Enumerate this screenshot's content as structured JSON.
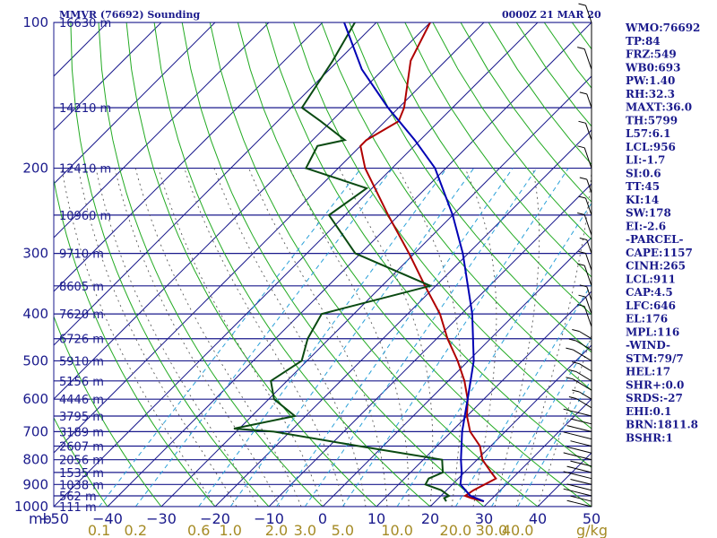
{
  "header": {
    "station": "MMVR (76692) Sounding",
    "time": "0000Z 21 MAR 20"
  },
  "chart_data": {
    "type": "skew-t",
    "xlim": [
      -50,
      50
    ],
    "p_range": [
      1000,
      100
    ],
    "pressure_ticks": [
      100,
      200,
      300,
      400,
      500,
      600,
      700,
      800,
      900,
      1000
    ],
    "temperature_ticks": [
      "−50",
      "−40",
      "−30",
      "−20",
      "−10",
      "0",
      "10",
      "20",
      "30",
      "40",
      "50"
    ],
    "pressure_unit": "mb",
    "mixing_ratio_unit": "g/kg",
    "mixing_ratio_ticks": [
      {
        "w": 0.1,
        "label": "0.1"
      },
      {
        "w": 0.2,
        "label": "0.2"
      },
      {
        "w": 0.6,
        "label": "0.6"
      },
      {
        "w": 1.0,
        "label": "1.0"
      },
      {
        "w": 2.0,
        "label": "2.0"
      },
      {
        "w": 3.0,
        "label": "3.0"
      },
      {
        "w": 5.0,
        "label": "5.0"
      },
      {
        "w": 10.0,
        "label": "10.0"
      },
      {
        "w": 20.0,
        "label": "20.0"
      },
      {
        "w": 30.0,
        "label": "30.0"
      },
      {
        "w": 40.0,
        "label": "40.0"
      }
    ],
    "height_labels": [
      {
        "p": 100,
        "h": "16630 m"
      },
      {
        "p": 150,
        "h": "14210 m"
      },
      {
        "p": 200,
        "h": "12410 m"
      },
      {
        "p": 250,
        "h": "10960 m"
      },
      {
        "p": 300,
        "h": "9710 m"
      },
      {
        "p": 350,
        "h": "8605 m"
      },
      {
        "p": 400,
        "h": "7620 m"
      },
      {
        "p": 450,
        "h": "6726 m"
      },
      {
        "p": 500,
        "h": "5910 m"
      },
      {
        "p": 550,
        "h": "5156 m"
      },
      {
        "p": 600,
        "h": "4446 m"
      },
      {
        "p": 650,
        "h": "3795 m"
      },
      {
        "p": 700,
        "h": "3189 m"
      },
      {
        "p": 750,
        "h": "2607 m"
      },
      {
        "p": 800,
        "h": "2056 m"
      },
      {
        "p": 850,
        "h": "1535 m"
      },
      {
        "p": 900,
        "h": "1038 m"
      },
      {
        "p": 950,
        "h": "562 m"
      },
      {
        "p": 1000,
        "h": "111 m"
      }
    ],
    "series": [
      {
        "name": "",
        "color": "#b00000",
        "points": [
          [
            975,
            29
          ],
          [
            960,
            26
          ],
          [
            950,
            24.5
          ],
          [
            925,
            25
          ],
          [
            900,
            26
          ],
          [
            875,
            27
          ],
          [
            850,
            25
          ],
          [
            800,
            21
          ],
          [
            750,
            18
          ],
          [
            700,
            13.5
          ],
          [
            650,
            10
          ],
          [
            600,
            7
          ],
          [
            550,
            3
          ],
          [
            500,
            -2
          ],
          [
            450,
            -8
          ],
          [
            400,
            -14
          ],
          [
            350,
            -22
          ],
          [
            300,
            -31
          ],
          [
            250,
            -42
          ],
          [
            200,
            -55
          ],
          [
            180,
            -60
          ],
          [
            175,
            -60
          ],
          [
            160,
            -57.5
          ],
          [
            150,
            -59
          ],
          [
            120,
            -66.5
          ],
          [
            100,
            -70
          ]
        ]
      },
      {
        "name": "",
        "color": "#0a4a12",
        "points": [
          [
            975,
            22
          ],
          [
            960,
            21
          ],
          [
            950,
            21.5
          ],
          [
            925,
            19
          ],
          [
            900,
            15
          ],
          [
            875,
            14.5
          ],
          [
            850,
            16
          ],
          [
            800,
            13.5
          ],
          [
            750,
            -4.5
          ],
          [
            700,
            -23
          ],
          [
            690,
            -31
          ],
          [
            650,
            -22
          ],
          [
            600,
            -29
          ],
          [
            550,
            -33
          ],
          [
            500,
            -31
          ],
          [
            450,
            -34
          ],
          [
            400,
            -36
          ],
          [
            350,
            -21
          ],
          [
            300,
            -41
          ],
          [
            250,
            -53
          ],
          [
            220,
            -51
          ],
          [
            200,
            -66
          ],
          [
            180,
            -68
          ],
          [
            175,
            -64
          ],
          [
            160,
            -72
          ],
          [
            150,
            -78
          ],
          [
            120,
            -81
          ],
          [
            100,
            -84
          ]
        ]
      },
      {
        "name": "",
        "color": "#0000b4",
        "points": [
          [
            975,
            29
          ],
          [
            950,
            25.5
          ],
          [
            925,
            23.5
          ],
          [
            900,
            21.5
          ],
          [
            850,
            19.5
          ],
          [
            800,
            17
          ],
          [
            700,
            12
          ],
          [
            600,
            7
          ],
          [
            500,
            1
          ],
          [
            400,
            -8
          ],
          [
            300,
            -21
          ],
          [
            250,
            -30
          ],
          [
            200,
            -42
          ],
          [
            175,
            -51
          ],
          [
            150,
            -62
          ],
          [
            125,
            -74
          ],
          [
            100,
            -86
          ]
        ]
      }
    ]
  },
  "indices": [
    "WMO:76692",
    "TP:84",
    "FRZ:549",
    "WB0:693",
    "PW:1.40",
    "RH:32.3",
    "MAXT:36.0",
    "TH:5799",
    "L57:6.1",
    "LCL:956",
    "LI:-1.7",
    "SI:0.6",
    "TT:45",
    "KI:14",
    "SW:178",
    "EI:-2.6",
    "-PARCEL-",
    "CAPE:1157",
    "CINH:265",
    "LCL:911",
    "CAP:4.5",
    "LFC:646",
    "EL:176",
    "MPL:116",
    "-WIND-",
    "STM:79/7",
    "HEL:17",
    "SHR+:0.0",
    "SRDS:-27",
    "EHI:0.1",
    "BRN:1811.8",
    "BSHR:1"
  ],
  "colors": {
    "isobar": "#1a1a8c",
    "isotherm": "#1a1a8c",
    "dry_adiabat": "#22aa22",
    "moist_adiabat": "#5a5a5a",
    "mixing_ratio": "#2aa0d8",
    "text": "#1a1a8c"
  }
}
